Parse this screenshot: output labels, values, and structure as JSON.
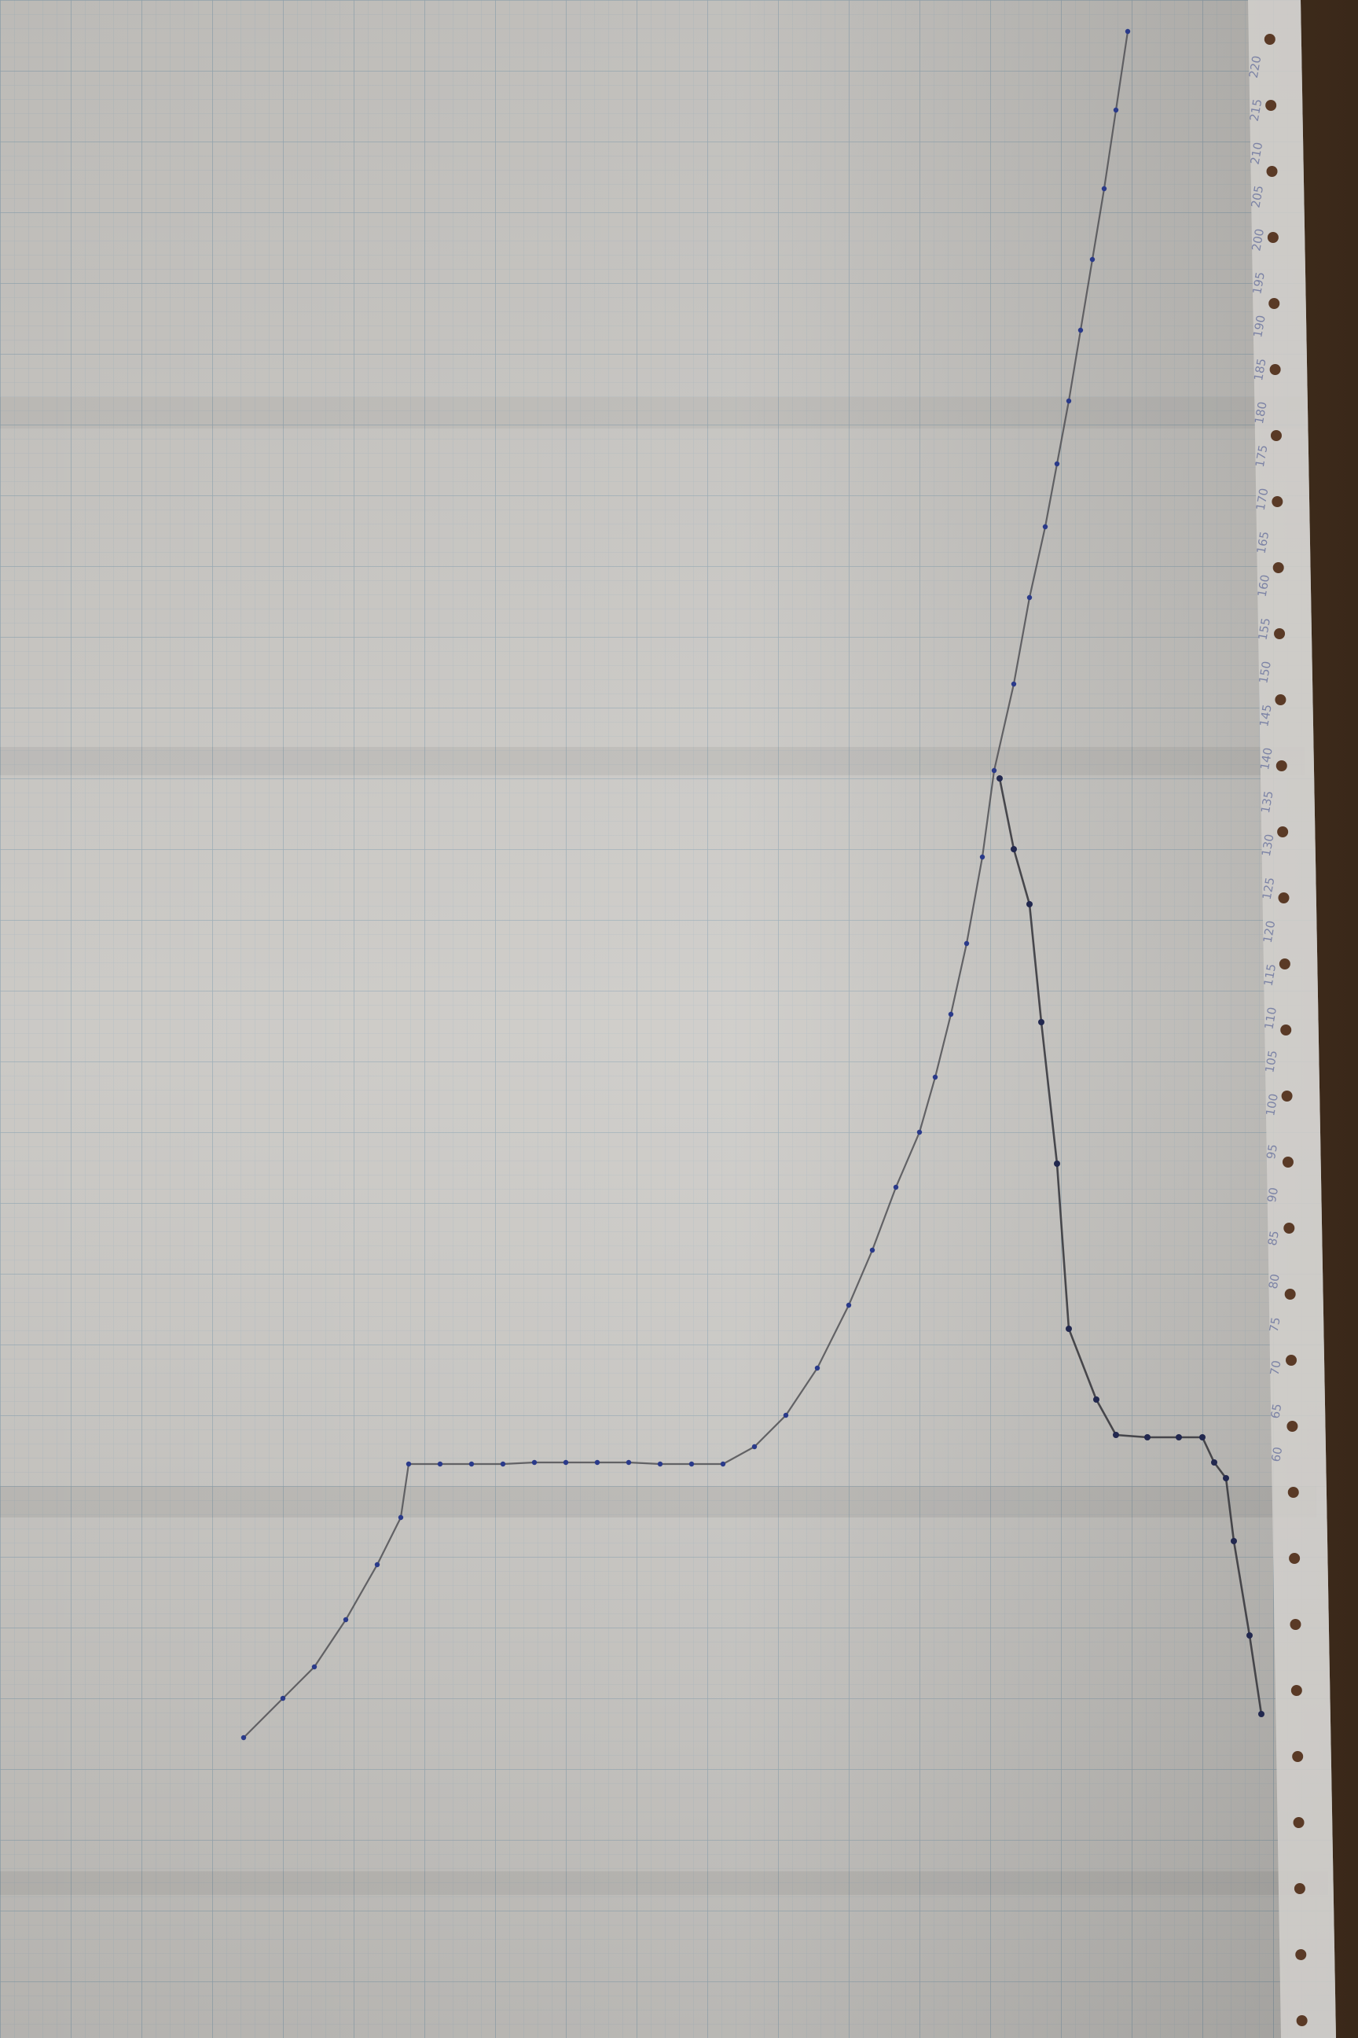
{
  "photo": {
    "subject": "",
    "paper_color": "#c9c7c3",
    "grid_color": "#8fa7b5",
    "ink_pencil": "#4b4b4f",
    "ink_pen": "#2a3a8a",
    "desk_color": "#4a3424"
  },
  "margin_labels": [
    "60",
    "65",
    "70",
    "75",
    "80",
    "85",
    "90",
    "95",
    "100",
    "105",
    "110",
    "115",
    "120",
    "125",
    "130",
    "135",
    "140",
    "145",
    "150",
    "155",
    "160",
    "165",
    "170",
    "175",
    "180",
    "185",
    "190",
    "195",
    "200",
    "205",
    "210",
    "215",
    "220"
  ],
  "curves": {
    "rising_curve_points": [
      [
        310,
        2210
      ],
      [
        360,
        2160
      ],
      [
        400,
        2120
      ],
      [
        440,
        2060
      ],
      [
        480,
        1990
      ],
      [
        510,
        1930
      ],
      [
        520,
        1862
      ],
      [
        560,
        1862
      ],
      [
        600,
        1862
      ],
      [
        640,
        1862
      ],
      [
        680,
        1860
      ],
      [
        720,
        1860
      ],
      [
        760,
        1860
      ],
      [
        800,
        1860
      ],
      [
        840,
        1862
      ],
      [
        880,
        1862
      ],
      [
        920,
        1862
      ],
      [
        960,
        1840
      ],
      [
        1000,
        1800
      ],
      [
        1040,
        1740
      ],
      [
        1080,
        1660
      ],
      [
        1110,
        1590
      ],
      [
        1140,
        1510
      ],
      [
        1170,
        1440
      ],
      [
        1190,
        1370
      ],
      [
        1210,
        1290
      ],
      [
        1230,
        1200
      ],
      [
        1250,
        1090
      ],
      [
        1265,
        980
      ],
      [
        1290,
        870
      ],
      [
        1310,
        760
      ],
      [
        1330,
        670
      ],
      [
        1345,
        590
      ],
      [
        1360,
        510
      ],
      [
        1375,
        420
      ],
      [
        1390,
        330
      ],
      [
        1405,
        240
      ],
      [
        1420,
        140
      ],
      [
        1435,
        40
      ]
    ],
    "falling_curve_points": [
      [
        1272,
        990
      ],
      [
        1290,
        1080
      ],
      [
        1310,
        1150
      ],
      [
        1325,
        1300
      ],
      [
        1345,
        1480
      ],
      [
        1360,
        1690
      ],
      [
        1395,
        1780
      ],
      [
        1420,
        1825
      ],
      [
        1460,
        1828
      ],
      [
        1500,
        1828
      ],
      [
        1530,
        1828
      ],
      [
        1545,
        1860
      ],
      [
        1560,
        1880
      ],
      [
        1570,
        1960
      ],
      [
        1590,
        2080
      ],
      [
        1605,
        2180
      ]
    ]
  }
}
